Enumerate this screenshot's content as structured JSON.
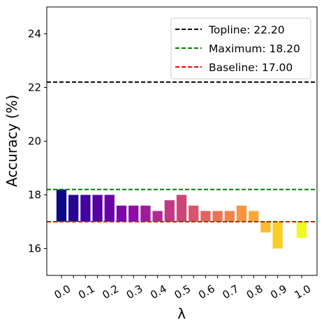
{
  "chart_data": {
    "type": "bar",
    "xlabel": "λ",
    "ylabel": "Accuracy (%)",
    "ylim": [
      15,
      25
    ],
    "yticks": [
      16,
      18,
      20,
      22,
      24
    ],
    "xtick_labels": [
      "0.0",
      "0.1",
      "0.2",
      "0.3",
      "0.4",
      "0.5",
      "0.6",
      "0.7",
      "0.8",
      "0.9",
      "1.0"
    ],
    "bar_base": 17.0,
    "x": [
      0.0,
      0.05,
      0.1,
      0.15,
      0.2,
      0.25,
      0.3,
      0.35,
      0.4,
      0.45,
      0.5,
      0.55,
      0.6,
      0.65,
      0.7,
      0.75,
      0.8,
      0.85,
      0.9,
      0.95,
      1.0
    ],
    "values": [
      18.2,
      18.0,
      18.0,
      18.0,
      18.0,
      17.6,
      17.6,
      17.6,
      17.4,
      17.8,
      18.0,
      17.6,
      17.4,
      17.4,
      17.4,
      17.6,
      17.4,
      16.6,
      16.0,
      17.0,
      16.4
    ],
    "colormap": "plasma",
    "reference_lines": [
      {
        "label": "Topline: 22.20",
        "value": 22.2,
        "color": "#000000"
      },
      {
        "label": "Maximum: 18.20",
        "value": 18.2,
        "color": "#008000"
      },
      {
        "label": "Baseline: 17.00",
        "value": 17.0,
        "color": "#ff0000"
      }
    ],
    "legend_position": "top-right",
    "grid": false
  }
}
